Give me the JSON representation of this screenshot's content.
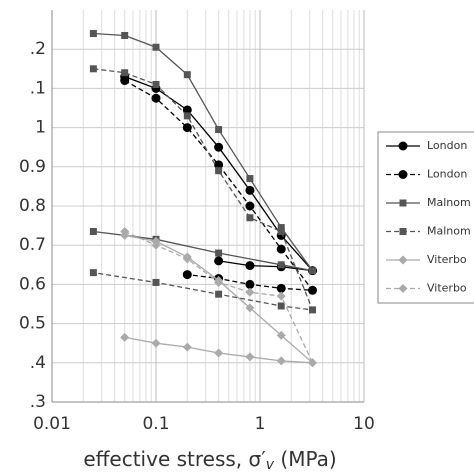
{
  "chart_data": {
    "type": "line",
    "xlabel": [
      "effective stress, σ′",
      "v",
      " (MPa)"
    ],
    "xscale": "log",
    "xlim": [
      0.01,
      10
    ],
    "xticks": [
      0.01,
      0.1,
      1,
      10
    ],
    "ylim": [
      0.3,
      1.3
    ],
    "yticks": [
      {
        "value": 0.3,
        "label": ".3"
      },
      {
        "value": 0.4,
        "label": ".4"
      },
      0.5,
      0.6,
      0.7,
      0.8,
      0.9,
      1,
      {
        "value": 1.1,
        "label": ".1"
      },
      {
        "value": 1.2,
        "label": ".2"
      }
    ],
    "grid": true,
    "legend": "right",
    "series": [
      {
        "name": "London",
        "color": "#000000",
        "marker": "circle",
        "dash": false,
        "x": [
          0.05,
          0.1,
          0.2,
          0.4,
          0.8,
          1.6,
          3.2,
          1.6,
          0.8,
          0.4
        ],
        "values": [
          1.13,
          1.1,
          1.045,
          0.95,
          0.84,
          0.725,
          0.635,
          0.645,
          0.648,
          0.66
        ]
      },
      {
        "name": "London",
        "color": "#000000",
        "marker": "circle",
        "dash": true,
        "x": [
          0.05,
          0.1,
          0.2,
          0.4,
          0.8,
          1.6,
          3.2,
          1.6,
          0.8,
          0.4,
          0.2
        ],
        "values": [
          1.12,
          1.075,
          1.0,
          0.905,
          0.8,
          0.69,
          0.585,
          0.59,
          0.6,
          0.615,
          0.625
        ]
      },
      {
        "name": "Malnom",
        "color": "#555555",
        "marker": "square",
        "dash": false,
        "x": [
          0.025,
          0.05,
          0.1,
          0.2,
          0.4,
          0.8,
          1.6,
          3.2,
          1.6,
          0.4,
          0.1,
          0.025
        ],
        "values": [
          1.24,
          1.235,
          1.205,
          1.135,
          0.995,
          0.87,
          0.745,
          0.635,
          0.65,
          0.68,
          0.715,
          0.735
        ]
      },
      {
        "name": "Malnom",
        "color": "#555555",
        "marker": "square",
        "dash": true,
        "x": [
          0.025,
          0.05,
          0.1,
          0.2,
          0.4,
          0.8,
          1.6,
          3.2,
          1.6,
          0.4,
          0.1,
          0.025
        ],
        "values": [
          1.15,
          1.14,
          1.11,
          1.03,
          0.89,
          0.77,
          0.735,
          0.535,
          0.545,
          0.575,
          0.605,
          0.63
        ]
      },
      {
        "name": "Viterbo",
        "color": "#aaaaaa",
        "marker": "diamond",
        "dash": false,
        "x": [
          0.05,
          0.1,
          0.2,
          0.4,
          0.8,
          1.6,
          3.2,
          1.6,
          0.8,
          0.4,
          0.2,
          0.1,
          0.05
        ],
        "values": [
          0.725,
          0.71,
          0.67,
          0.61,
          0.54,
          0.47,
          0.4,
          0.405,
          0.415,
          0.425,
          0.44,
          0.45,
          0.465
        ]
      },
      {
        "name": "Viterbo",
        "color": "#aaaaaa",
        "marker": "diamond",
        "dash": true,
        "x": [
          0.05,
          0.1,
          0.2,
          0.4,
          0.8,
          1.6,
          3.2
        ],
        "values": [
          0.735,
          0.7,
          0.665,
          0.605,
          0.58,
          0.57,
          0.4
        ]
      }
    ]
  }
}
